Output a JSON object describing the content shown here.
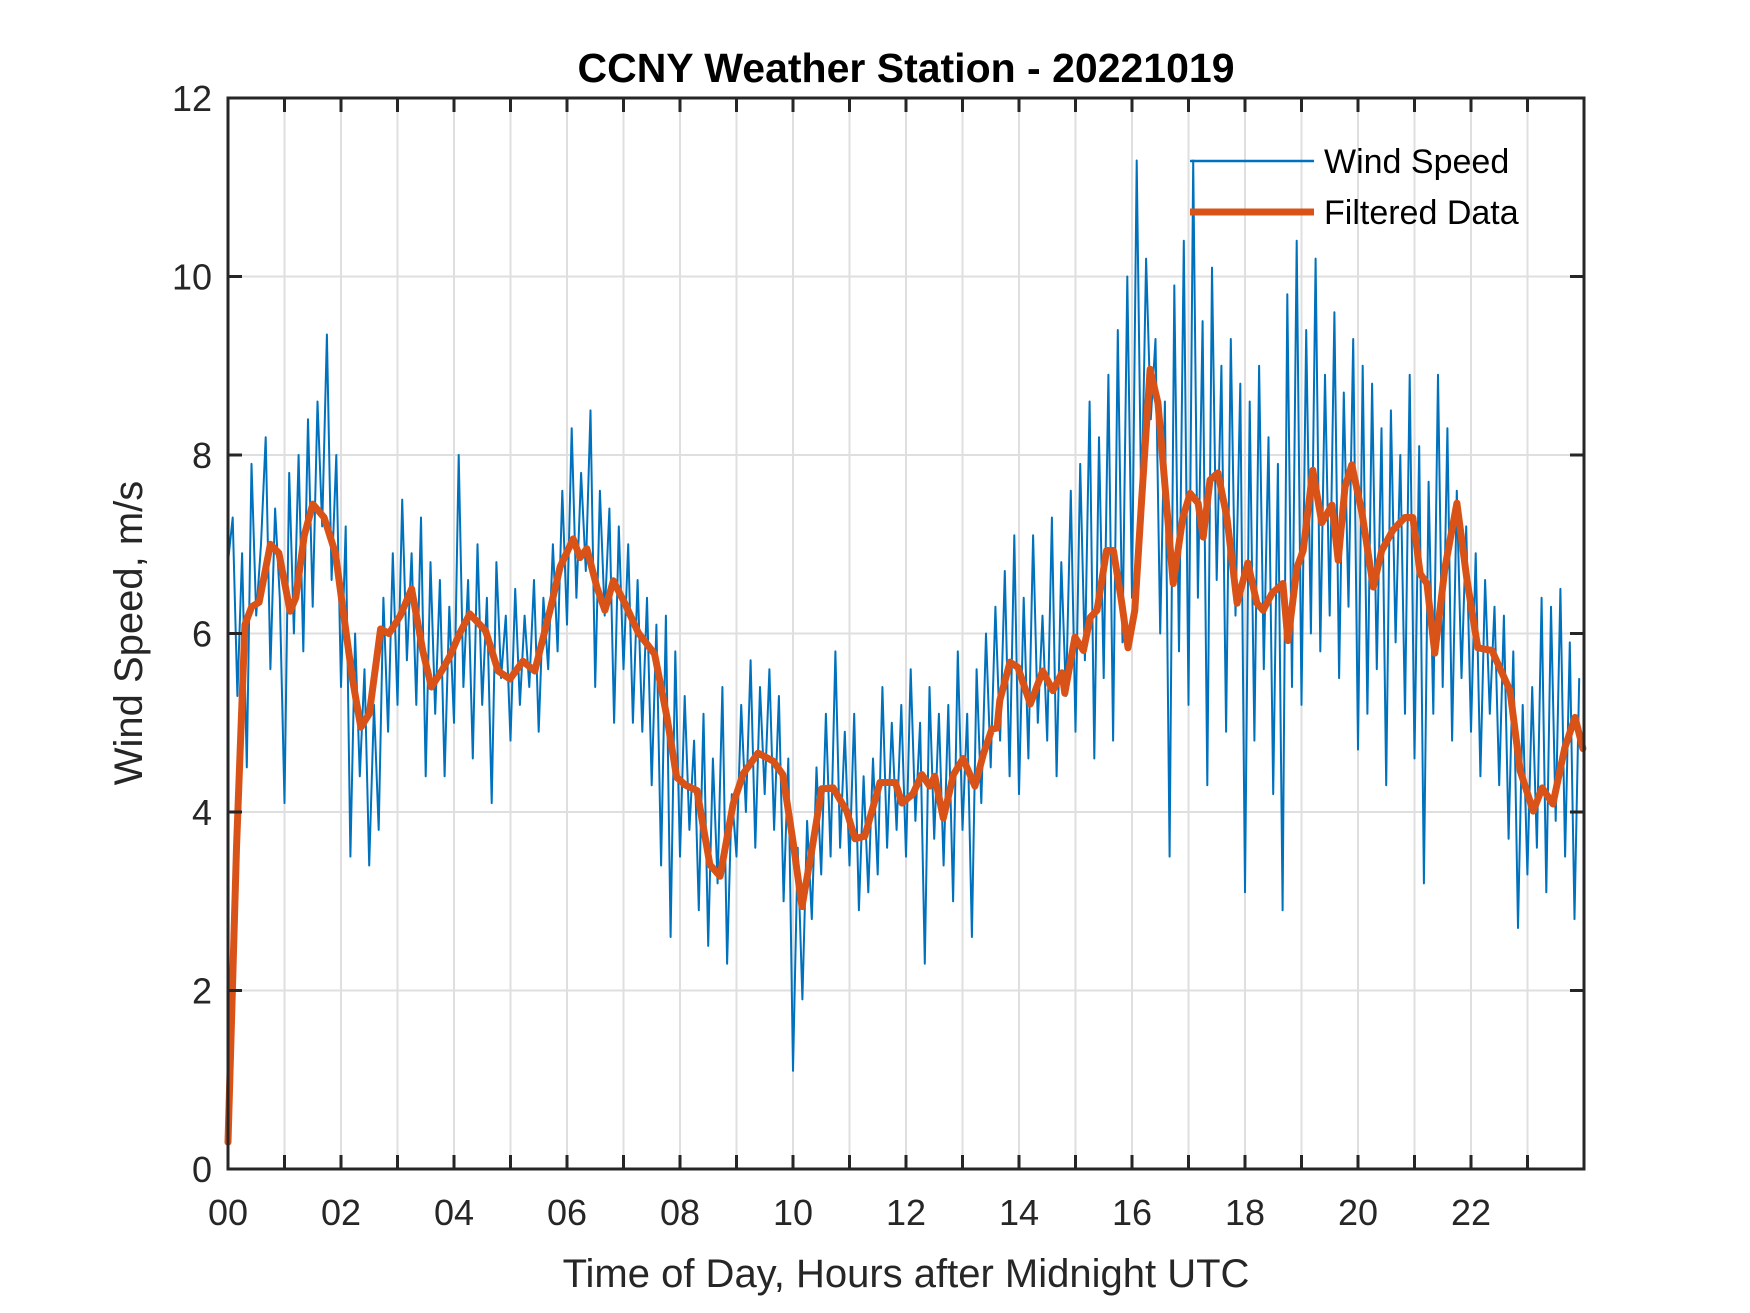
{
  "chart_data": {
    "type": "line",
    "title": "CCNY Weather Station - 20221019",
    "xlabel": "Time of Day, Hours after Midnight UTC",
    "ylabel": "Wind Speed, m/s",
    "xlim": [
      0,
      24
    ],
    "ylim": [
      0,
      12
    ],
    "grid": true,
    "legend_position": "top-right",
    "x_ticks": [
      0,
      2,
      4,
      6,
      8,
      10,
      12,
      14,
      16,
      18,
      20,
      22
    ],
    "x_tick_labels": [
      "00",
      "02",
      "04",
      "06",
      "08",
      "10",
      "12",
      "14",
      "16",
      "18",
      "20",
      "22"
    ],
    "x_minor_grid_step_hours": 1,
    "y_ticks": [
      0,
      2,
      4,
      6,
      8,
      10,
      12
    ],
    "y_tick_labels": [
      "0",
      "2",
      "4",
      "6",
      "8",
      "10",
      "12"
    ],
    "series": [
      {
        "name": "Wind Speed",
        "color": "#0072BD",
        "x_step_hours": 0.08333,
        "values": [
          6.8,
          7.3,
          5.3,
          6.9,
          4.5,
          7.9,
          6.2,
          7.0,
          8.2,
          5.6,
          7.4,
          6.4,
          4.1,
          7.8,
          6.0,
          8.0,
          5.8,
          8.4,
          6.3,
          8.6,
          7.2,
          9.35,
          6.6,
          8.0,
          5.4,
          7.2,
          3.5,
          6.0,
          4.4,
          5.6,
          3.4,
          5.2,
          3.8,
          6.4,
          4.9,
          6.9,
          5.2,
          7.5,
          5.7,
          6.9,
          5.2,
          7.3,
          4.4,
          6.8,
          5.1,
          6.6,
          4.4,
          6.3,
          5.0,
          8.0,
          5.4,
          6.6,
          4.6,
          7.0,
          5.2,
          6.4,
          4.1,
          6.8,
          5.5,
          6.2,
          4.8,
          6.5,
          5.2,
          6.2,
          5.4,
          6.6,
          4.9,
          6.4,
          5.6,
          7.0,
          5.8,
          7.6,
          6.1,
          8.3,
          6.4,
          7.8,
          6.7,
          8.5,
          5.4,
          7.6,
          6.2,
          7.4,
          5.0,
          7.2,
          5.6,
          7.0,
          5.0,
          6.6,
          4.9,
          6.4,
          4.3,
          6.1,
          3.4,
          6.2,
          2.6,
          5.8,
          3.5,
          5.3,
          3.8,
          4.8,
          2.9,
          5.1,
          2.5,
          4.6,
          3.2,
          5.4,
          2.3,
          4.2,
          3.5,
          5.2,
          4.0,
          5.7,
          3.6,
          5.4,
          4.2,
          5.6,
          3.8,
          5.3,
          3.0,
          4.6,
          1.1,
          3.6,
          1.9,
          3.9,
          2.8,
          4.5,
          3.3,
          5.1,
          3.5,
          5.8,
          3.6,
          4.9,
          3.4,
          5.1,
          2.9,
          4.4,
          3.1,
          4.6,
          3.3,
          5.4,
          3.6,
          5.0,
          3.8,
          5.2,
          3.5,
          5.6,
          3.9,
          5.0,
          2.3,
          5.4,
          3.7,
          5.1,
          3.4,
          5.2,
          3.0,
          5.8,
          3.8,
          5.1,
          2.6,
          5.6,
          4.1,
          6.0,
          4.5,
          6.3,
          4.8,
          6.7,
          4.4,
          7.1,
          4.2,
          6.4,
          4.6,
          7.1,
          5.0,
          6.2,
          4.8,
          7.3,
          4.4,
          6.8,
          5.3,
          7.6,
          4.9,
          7.9,
          5.7,
          8.6,
          4.6,
          8.2,
          5.5,
          8.9,
          4.8,
          9.4,
          5.9,
          10.0,
          6.4,
          11.3,
          7.3,
          10.2,
          8.4,
          9.3,
          6.0,
          8.6,
          3.5,
          9.9,
          5.8,
          10.4,
          5.2,
          11.3,
          6.4,
          9.5,
          4.3,
          10.1,
          6.6,
          9.0,
          4.9,
          9.3,
          6.2,
          8.8,
          3.1,
          8.6,
          4.8,
          9.0,
          5.6,
          8.2,
          4.2,
          7.9,
          2.9,
          9.8,
          5.4,
          10.4,
          5.2,
          9.4,
          6.0,
          10.2,
          5.8,
          8.9,
          6.2,
          9.6,
          5.5,
          8.7,
          6.3,
          9.3,
          4.7,
          9.0,
          5.1,
          8.8,
          5.6,
          8.3,
          4.3,
          8.5,
          5.9,
          8.0,
          5.1,
          8.9,
          4.6,
          8.1,
          3.2,
          7.7,
          5.1,
          8.9,
          5.4,
          8.3,
          4.8,
          7.6,
          5.5,
          7.2,
          4.9,
          6.9,
          4.4,
          6.6,
          5.1,
          6.3,
          4.3,
          6.2,
          3.7,
          5.8,
          2.7,
          5.2,
          3.3,
          5.4,
          3.6,
          6.4,
          3.1,
          6.3,
          3.9,
          6.5,
          3.5,
          5.9,
          2.8,
          5.5
        ]
      },
      {
        "name": "Filtered Data",
        "color": "#D95319",
        "points": [
          [
            0.0,
            0.3
          ],
          [
            0.15,
            3.6
          ],
          [
            0.3,
            6.1
          ],
          [
            0.42,
            6.3
          ],
          [
            0.55,
            6.35
          ],
          [
            0.75,
            7.0
          ],
          [
            0.9,
            6.9
          ],
          [
            1.1,
            6.25
          ],
          [
            1.2,
            6.4
          ],
          [
            1.35,
            7.1
          ],
          [
            1.5,
            7.45
          ],
          [
            1.7,
            7.3
          ],
          [
            1.9,
            6.9
          ],
          [
            2.05,
            6.2
          ],
          [
            2.2,
            5.5
          ],
          [
            2.35,
            4.95
          ],
          [
            2.5,
            5.1
          ],
          [
            2.7,
            6.05
          ],
          [
            2.85,
            6.0
          ],
          [
            3.05,
            6.2
          ],
          [
            3.25,
            6.5
          ],
          [
            3.45,
            5.8
          ],
          [
            3.6,
            5.4
          ],
          [
            3.8,
            5.6
          ],
          [
            3.93,
            5.75
          ],
          [
            4.1,
            6.0
          ],
          [
            4.28,
            6.22
          ],
          [
            4.56,
            6.03
          ],
          [
            4.78,
            5.58
          ],
          [
            4.99,
            5.49
          ],
          [
            5.22,
            5.69
          ],
          [
            5.43,
            5.58
          ],
          [
            5.7,
            6.26
          ],
          [
            5.88,
            6.75
          ],
          [
            6.11,
            7.06
          ],
          [
            6.23,
            6.85
          ],
          [
            6.35,
            6.95
          ],
          [
            6.53,
            6.52
          ],
          [
            6.67,
            6.26
          ],
          [
            6.82,
            6.59
          ],
          [
            7.03,
            6.33
          ],
          [
            7.26,
            6.01
          ],
          [
            7.55,
            5.77
          ],
          [
            7.77,
            5.06
          ],
          [
            7.94,
            4.39
          ],
          [
            8.1,
            4.3
          ],
          [
            8.3,
            4.24
          ],
          [
            8.53,
            3.41
          ],
          [
            8.71,
            3.28
          ],
          [
            8.94,
            4.09
          ],
          [
            9.12,
            4.43
          ],
          [
            9.38,
            4.66
          ],
          [
            9.65,
            4.57
          ],
          [
            9.82,
            4.42
          ],
          [
            10.0,
            3.67
          ],
          [
            10.16,
            2.94
          ],
          [
            10.34,
            3.6
          ],
          [
            10.51,
            4.26
          ],
          [
            10.71,
            4.27
          ],
          [
            10.95,
            4.01
          ],
          [
            11.1,
            3.7
          ],
          [
            11.27,
            3.73
          ],
          [
            11.54,
            4.33
          ],
          [
            11.81,
            4.33
          ],
          [
            11.93,
            4.1
          ],
          [
            12.12,
            4.2
          ],
          [
            12.28,
            4.42
          ],
          [
            12.42,
            4.29
          ],
          [
            12.51,
            4.4
          ],
          [
            12.66,
            3.93
          ],
          [
            12.84,
            4.42
          ],
          [
            13.01,
            4.6
          ],
          [
            13.22,
            4.29
          ],
          [
            13.37,
            4.65
          ],
          [
            13.52,
            4.93
          ],
          [
            13.61,
            4.94
          ],
          [
            13.66,
            5.25
          ],
          [
            13.84,
            5.68
          ],
          [
            13.98,
            5.62
          ],
          [
            14.2,
            5.21
          ],
          [
            14.42,
            5.58
          ],
          [
            14.6,
            5.36
          ],
          [
            14.76,
            5.56
          ],
          [
            14.81,
            5.33
          ],
          [
            14.99,
            5.96
          ],
          [
            15.14,
            5.81
          ],
          [
            15.26,
            6.18
          ],
          [
            15.38,
            6.26
          ],
          [
            15.55,
            6.93
          ],
          [
            15.67,
            6.93
          ],
          [
            15.82,
            6.34
          ],
          [
            15.93,
            5.84
          ],
          [
            16.05,
            6.26
          ],
          [
            16.17,
            7.49
          ],
          [
            16.32,
            8.96
          ],
          [
            16.46,
            8.58
          ],
          [
            16.58,
            7.68
          ],
          [
            16.73,
            6.56
          ],
          [
            16.9,
            7.3
          ],
          [
            17.03,
            7.57
          ],
          [
            17.17,
            7.46
          ],
          [
            17.26,
            7.08
          ],
          [
            17.38,
            7.72
          ],
          [
            17.52,
            7.8
          ],
          [
            17.68,
            7.3
          ],
          [
            17.86,
            6.34
          ],
          [
            18.05,
            6.79
          ],
          [
            18.21,
            6.34
          ],
          [
            18.32,
            6.26
          ],
          [
            18.48,
            6.45
          ],
          [
            18.67,
            6.56
          ],
          [
            18.76,
            5.92
          ],
          [
            18.92,
            6.74
          ],
          [
            19.03,
            6.93
          ],
          [
            19.2,
            7.83
          ],
          [
            19.36,
            7.24
          ],
          [
            19.54,
            7.44
          ],
          [
            19.65,
            6.82
          ],
          [
            19.77,
            7.64
          ],
          [
            19.89,
            7.89
          ],
          [
            20.07,
            7.35
          ],
          [
            20.27,
            6.52
          ],
          [
            20.42,
            6.93
          ],
          [
            20.62,
            7.16
          ],
          [
            20.83,
            7.3
          ],
          [
            20.97,
            7.3
          ],
          [
            21.1,
            6.67
          ],
          [
            21.22,
            6.56
          ],
          [
            21.36,
            5.78
          ],
          [
            21.54,
            6.74
          ],
          [
            21.75,
            7.46
          ],
          [
            21.93,
            6.6
          ],
          [
            22.12,
            5.84
          ],
          [
            22.37,
            5.81
          ],
          [
            22.69,
            5.36
          ],
          [
            22.87,
            4.46
          ],
          [
            23.1,
            4.01
          ],
          [
            23.26,
            4.27
          ],
          [
            23.45,
            4.09
          ],
          [
            23.66,
            4.72
          ],
          [
            23.84,
            5.06
          ],
          [
            23.98,
            4.71
          ]
        ]
      }
    ]
  }
}
